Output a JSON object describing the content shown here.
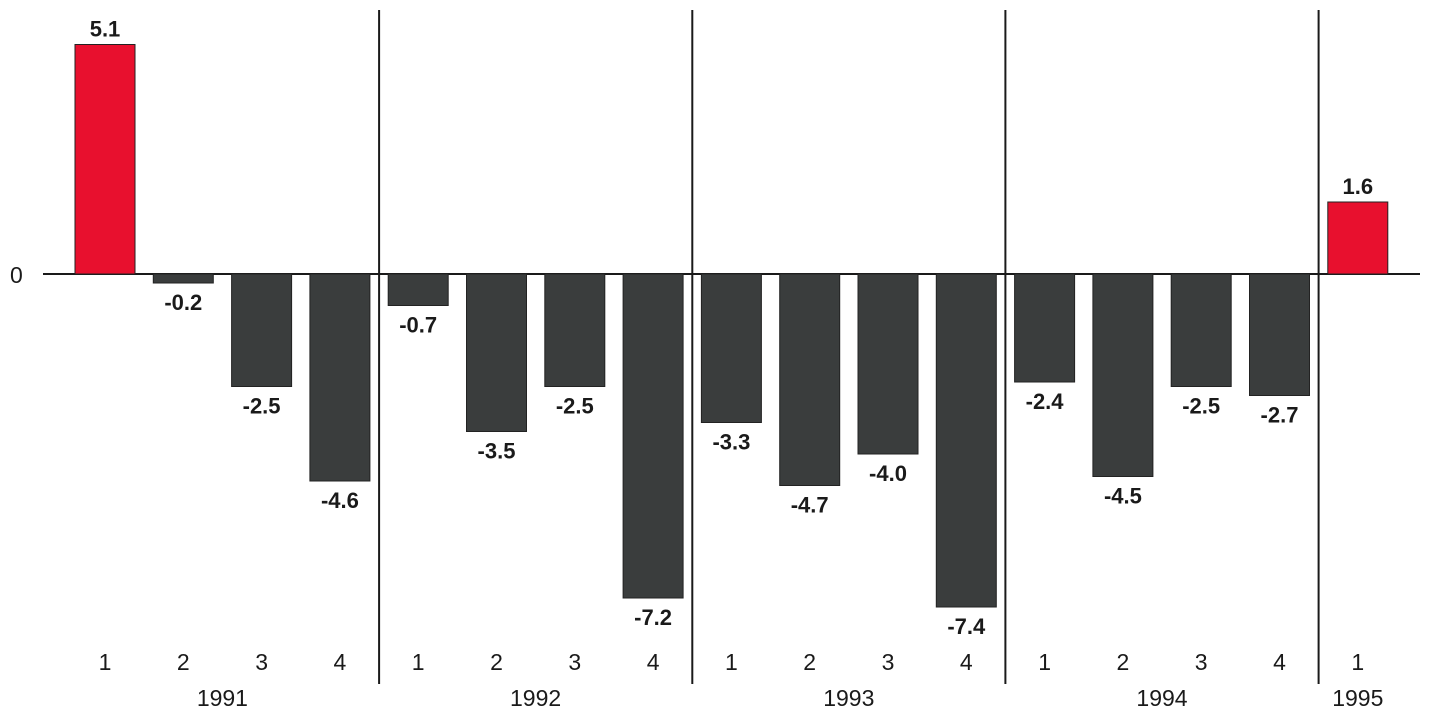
{
  "chart_data": {
    "type": "bar",
    "y_zero_label": "0",
    "ylim": [
      -7.4,
      5.1
    ],
    "grid": false,
    "legend": "none",
    "colors": {
      "positive": "#e8102e",
      "negative": "#3a3d3d",
      "axis": "#1a1a1a"
    },
    "groups": [
      {
        "year": "1991",
        "quarters": [
          "1",
          "2",
          "3",
          "4"
        ],
        "values": [
          5.1,
          -0.2,
          -2.5,
          -4.6
        ],
        "value_labels": [
          "5.1",
          "-0.2",
          "-2.5",
          "-4.6"
        ]
      },
      {
        "year": "1992",
        "quarters": [
          "1",
          "2",
          "3",
          "4"
        ],
        "values": [
          -0.7,
          -3.5,
          -2.5,
          -7.2
        ],
        "value_labels": [
          "-0.7",
          "-3.5",
          "-2.5",
          "-7.2"
        ]
      },
      {
        "year": "1993",
        "quarters": [
          "1",
          "2",
          "3",
          "4"
        ],
        "values": [
          -3.3,
          -4.7,
          -4.0,
          -7.4
        ],
        "value_labels": [
          "-3.3",
          "-4.7",
          "-4.0",
          "-7.4"
        ]
      },
      {
        "year": "1994",
        "quarters": [
          "1",
          "2",
          "3",
          "4"
        ],
        "values": [
          -2.4,
          -4.5,
          -2.5,
          -2.7
        ],
        "value_labels": [
          "-2.4",
          "-4.5",
          "-2.5",
          "-2.7"
        ]
      },
      {
        "year": "1995",
        "quarters": [
          "1"
        ],
        "values": [
          1.6
        ],
        "value_labels": [
          "1.6"
        ]
      }
    ]
  }
}
